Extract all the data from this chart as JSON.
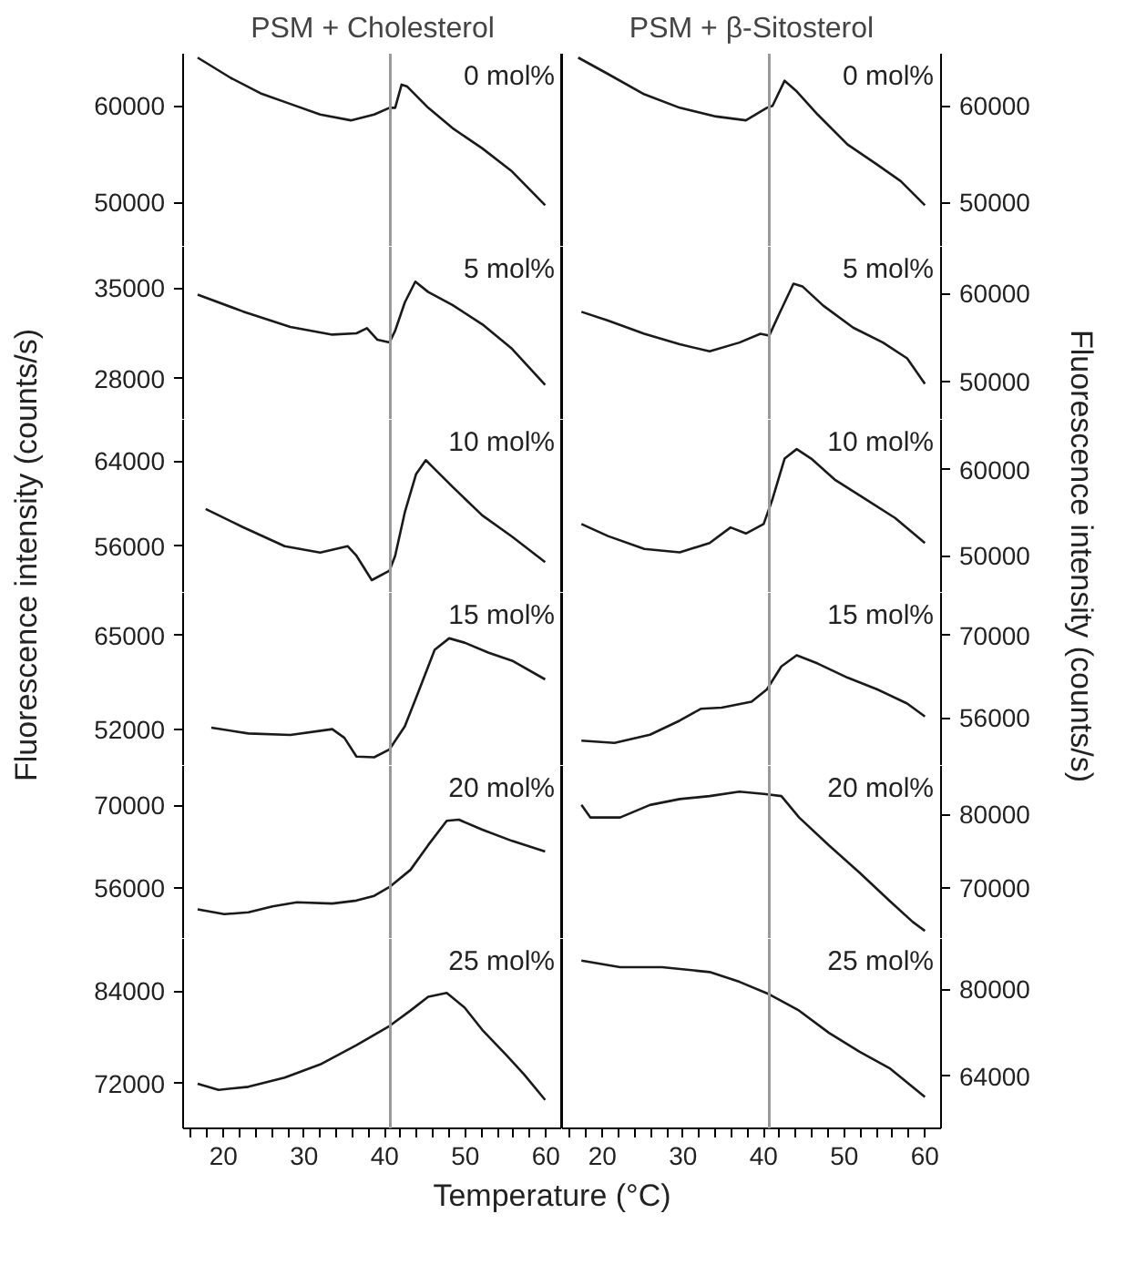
{
  "chart_data": [
    {
      "type": "line",
      "title": "PSM + Cholesterol",
      "annotations": [
        "0 mol%"
      ],
      "xlim": [
        15,
        62
      ],
      "ylim": [
        45400,
        65400
      ],
      "yticks": [
        50000,
        60000
      ],
      "tick_labels": "y",
      "ref_lines": [
        {
          "axis": "x",
          "value": 40.7,
          "color": "#999999"
        }
      ],
      "series": [
        {
          "color": "#1a1a1a",
          "x": [
            16.8,
            20.9,
            24.6,
            28.3,
            32.0,
            35.8,
            38.7,
            40.6,
            41.3,
            42.1,
            42.8,
            45.4,
            48.4,
            52.1,
            55.8,
            59.9
          ],
          "values": [
            65000,
            62900,
            61300,
            60200,
            59100,
            58500,
            59100,
            59800,
            59800,
            62200,
            62000,
            59800,
            57700,
            55600,
            53200,
            49700
          ]
        }
      ]
    },
    {
      "type": "line",
      "title": "PSM + β-Sitosterol",
      "annotations": [
        "0 mol%"
      ],
      "xlim": [
        15,
        62
      ],
      "ylim": [
        45400,
        65400
      ],
      "yticks": [
        50000,
        60000
      ],
      "tick_labels": "y",
      "ref_lines": [
        {
          "axis": "x",
          "value": 40.7,
          "color": "#999999"
        }
      ],
      "series": [
        {
          "color": "#1a1a1a",
          "x": [
            17.0,
            20.7,
            25.2,
            29.6,
            34.1,
            37.8,
            40.4,
            41.1,
            42.6,
            44.1,
            46.7,
            50.4,
            54.1,
            57.0,
            60.0
          ],
          "values": [
            65000,
            63300,
            61200,
            59800,
            58900,
            58500,
            59800,
            60000,
            62600,
            61500,
            59100,
            56000,
            53900,
            52200,
            49700
          ]
        }
      ]
    },
    {
      "type": "line",
      "annotations": [
        "5 mol%"
      ],
      "xlim": [
        15,
        62
      ],
      "ylim": [
        24800,
        38200
      ],
      "yticks": [
        28000,
        35000
      ],
      "tick_labels": "y",
      "ref_lines": [
        {
          "axis": "x",
          "value": 40.7,
          "color": "#999999"
        }
      ],
      "series": [
        {
          "color": "#1a1a1a",
          "x": [
            16.8,
            22.4,
            28.3,
            33.5,
            36.5,
            37.8,
            39.1,
            40.6,
            41.3,
            42.5,
            43.8,
            45.4,
            48.4,
            52.1,
            55.8,
            59.9
          ],
          "values": [
            34500,
            33200,
            32000,
            31400,
            31500,
            31900,
            31000,
            30800,
            31700,
            33900,
            35500,
            34700,
            33700,
            32200,
            30300,
            27500
          ]
        }
      ]
    },
    {
      "type": "line",
      "annotations": [
        "5 mol%"
      ],
      "xlim": [
        15,
        62
      ],
      "ylim": [
        45600,
        65300
      ],
      "yticks": [
        50000,
        60000
      ],
      "tick_labels": "y",
      "ref_lines": [
        {
          "axis": "x",
          "value": 40.7,
          "color": "#999999"
        }
      ],
      "series": [
        {
          "color": "#1a1a1a",
          "x": [
            17.4,
            20.7,
            25.2,
            29.6,
            33.3,
            37.0,
            39.6,
            40.7,
            41.9,
            43.7,
            44.8,
            47.4,
            51.1,
            54.8,
            57.8,
            60.0
          ],
          "values": [
            57900,
            56900,
            55400,
            54200,
            53400,
            54400,
            55400,
            55200,
            57600,
            61100,
            60800,
            58600,
            56100,
            54400,
            52600,
            49700
          ]
        }
      ]
    },
    {
      "type": "line",
      "annotations": [
        "10 mol%"
      ],
      "ylabel": "Fluorescence intensity (counts/s)",
      "xlim": [
        15,
        62
      ],
      "ylim": [
        51600,
        67900
      ],
      "yticks": [
        56000,
        64000
      ],
      "tick_labels": "y",
      "ref_lines": [
        {
          "axis": "x",
          "value": 40.7,
          "color": "#999999"
        }
      ],
      "series": [
        {
          "color": "#1a1a1a",
          "x": [
            17.8,
            22.4,
            27.6,
            32.0,
            35.4,
            36.5,
            38.4,
            40.6,
            41.3,
            42.5,
            43.9,
            45.1,
            48.4,
            52.1,
            55.8,
            59.9
          ],
          "values": [
            59500,
            57800,
            56000,
            55400,
            56000,
            55100,
            52800,
            53700,
            55100,
            59200,
            62800,
            64100,
            61600,
            58900,
            56900,
            54500
          ]
        }
      ]
    },
    {
      "type": "line",
      "annotations": [
        "10 mol%"
      ],
      "ylabel": "Fluorescence intensity (counts/s)",
      "xlim": [
        15,
        62
      ],
      "ylim": [
        45700,
        65800
      ],
      "yticks": [
        50000,
        60000
      ],
      "tick_labels": "y",
      "ref_lines": [
        {
          "axis": "x",
          "value": 40.7,
          "color": "#999999"
        }
      ],
      "series": [
        {
          "color": "#1a1a1a",
          "x": [
            17.4,
            20.7,
            25.2,
            29.6,
            33.3,
            35.9,
            37.8,
            40.0,
            41.1,
            42.6,
            44.1,
            45.9,
            48.9,
            52.6,
            56.3,
            60.0
          ],
          "values": [
            53700,
            52300,
            50800,
            50400,
            51500,
            53300,
            52600,
            53700,
            56600,
            61300,
            62400,
            61300,
            58800,
            56600,
            54400,
            51500
          ]
        }
      ]
    },
    {
      "type": "line",
      "annotations": [
        "15 mol%"
      ],
      "xlim": [
        15,
        62
      ],
      "ylim": [
        46900,
        70900
      ],
      "yticks": [
        52000,
        65000
      ],
      "tick_labels": "y",
      "ref_lines": [
        {
          "axis": "x",
          "value": 40.7,
          "color": "#999999"
        }
      ],
      "series": [
        {
          "color": "#1a1a1a",
          "x": [
            18.5,
            23.1,
            28.3,
            33.5,
            35.0,
            36.5,
            38.7,
            40.6,
            42.5,
            44.3,
            46.2,
            48.0,
            49.9,
            52.9,
            55.8,
            59.9
          ],
          "values": [
            52200,
            51400,
            51200,
            52000,
            50800,
            48200,
            48100,
            49200,
            52400,
            57500,
            63000,
            64600,
            64000,
            62600,
            61500,
            58900
          ]
        }
      ]
    },
    {
      "type": "line",
      "annotations": [
        "15 mol%"
      ],
      "xlim": [
        15,
        62
      ],
      "ylim": [
        47800,
        77200
      ],
      "yticks": [
        56000,
        70000
      ],
      "tick_labels": "y",
      "ref_lines": [
        {
          "axis": "x",
          "value": 40.7,
          "color": "#999999"
        }
      ],
      "series": [
        {
          "color": "#1a1a1a",
          "x": [
            17.4,
            21.5,
            25.9,
            29.6,
            32.2,
            34.8,
            38.5,
            40.4,
            42.2,
            44.1,
            46.7,
            50.4,
            54.1,
            57.8,
            60.0
          ],
          "values": [
            52100,
            51700,
            53100,
            55500,
            57500,
            57700,
            58700,
            60800,
            64700,
            66600,
            65200,
            62800,
            60800,
            58400,
            56200
          ]
        }
      ]
    },
    {
      "type": "line",
      "annotations": [
        "20 mol%"
      ],
      "xlim": [
        15,
        62
      ],
      "ylim": [
        47400,
        76700
      ],
      "yticks": [
        56000,
        70000
      ],
      "tick_labels": "y",
      "ref_lines": [
        {
          "axis": "x",
          "value": 40.7,
          "color": "#999999"
        }
      ],
      "series": [
        {
          "color": "#1a1a1a",
          "x": [
            16.8,
            20.1,
            23.1,
            26.1,
            29.1,
            33.5,
            36.5,
            38.7,
            40.6,
            43.2,
            45.4,
            47.7,
            49.2,
            52.1,
            55.8,
            59.9
          ],
          "values": [
            52400,
            51600,
            51900,
            52900,
            53600,
            53400,
            53900,
            54700,
            56200,
            59100,
            63300,
            67400,
            67600,
            65900,
            64000,
            62200
          ]
        }
      ]
    },
    {
      "type": "line",
      "annotations": [
        "20 mol%"
      ],
      "xlim": [
        15,
        62
      ],
      "ylim": [
        63100,
        86600
      ],
      "yticks": [
        70000,
        80000
      ],
      "tick_labels": "y",
      "ref_lines": [
        {
          "axis": "x",
          "value": 40.7,
          "color": "#999999"
        }
      ],
      "series": [
        {
          "color": "#1a1a1a",
          "x": [
            17.4,
            18.5,
            22.2,
            25.9,
            29.6,
            33.3,
            37.0,
            40.0,
            42.2,
            44.4,
            48.1,
            51.9,
            55.6,
            58.5,
            60.0
          ],
          "values": [
            81300,
            79600,
            79600,
            81300,
            82100,
            82500,
            83100,
            82800,
            82500,
            79600,
            75800,
            72100,
            68300,
            65400,
            64200
          ]
        }
      ]
    },
    {
      "type": "line",
      "annotations": [
        "25 mol%"
      ],
      "xlabel": "Temperature (°C)",
      "xlim": [
        15,
        62
      ],
      "xticks": [
        {
          "value": 16,
          "label": null
        },
        {
          "value": 18,
          "label": null
        },
        20,
        {
          "value": 22,
          "label": null
        },
        {
          "value": 24,
          "label": null
        },
        {
          "value": 26,
          "label": null
        },
        {
          "value": 28,
          "label": null
        },
        30,
        {
          "value": 32,
          "label": null
        },
        {
          "value": 34,
          "label": null
        },
        {
          "value": 36,
          "label": null
        },
        {
          "value": 38,
          "label": null
        },
        40,
        {
          "value": 42,
          "label": null
        },
        {
          "value": 44,
          "label": null
        },
        {
          "value": 46,
          "label": null
        },
        {
          "value": 48,
          "label": null
        },
        50,
        {
          "value": 52,
          "label": null
        },
        {
          "value": 54,
          "label": null
        },
        {
          "value": 56,
          "label": null
        },
        {
          "value": 58,
          "label": null
        },
        60
      ],
      "ylim": [
        66200,
        90800
      ],
      "yticks": [
        72000,
        84000
      ],
      "ref_lines": [
        {
          "axis": "x",
          "value": 40.7,
          "color": "#999999"
        }
      ],
      "series": [
        {
          "color": "#1a1a1a",
          "x": [
            16.8,
            19.4,
            23.1,
            27.6,
            32.0,
            36.5,
            40.6,
            43.2,
            45.4,
            47.7,
            49.9,
            52.1,
            55.1,
            57.3,
            59.9
          ],
          "values": [
            72000,
            71200,
            71600,
            72800,
            74500,
            77000,
            79500,
            81500,
            83300,
            83800,
            81900,
            79000,
            75700,
            73200,
            69900
          ]
        }
      ]
    },
    {
      "type": "line",
      "annotations": [
        "25 mol%"
      ],
      "xlim": [
        15,
        62
      ],
      "xticks": [
        {
          "value": 16,
          "label": null
        },
        {
          "value": 18,
          "label": null
        },
        20,
        {
          "value": 22,
          "label": null
        },
        {
          "value": 24,
          "label": null
        },
        {
          "value": 26,
          "label": null
        },
        {
          "value": 28,
          "label": null
        },
        30,
        {
          "value": 32,
          "label": null
        },
        {
          "value": 34,
          "label": null
        },
        {
          "value": 36,
          "label": null
        },
        {
          "value": 38,
          "label": null
        },
        40,
        {
          "value": 42,
          "label": null
        },
        {
          "value": 44,
          "label": null
        },
        {
          "value": 46,
          "label": null
        },
        {
          "value": 48,
          "label": null
        },
        50,
        {
          "value": 52,
          "label": null
        },
        {
          "value": 54,
          "label": null
        },
        {
          "value": 56,
          "label": null
        },
        {
          "value": 58,
          "label": null
        },
        60
      ],
      "ylim": [
        54400,
        89300
      ],
      "yticks": [
        64000,
        80000
      ],
      "ref_lines": [
        {
          "axis": "x",
          "value": 40.7,
          "color": "#999999"
        }
      ],
      "series": [
        {
          "color": "#1a1a1a",
          "x": [
            17.4,
            22.2,
            27.4,
            33.3,
            37.0,
            40.7,
            44.4,
            48.1,
            51.9,
            55.6,
            60.0
          ],
          "values": [
            85300,
            84100,
            84100,
            83200,
            81400,
            79100,
            76100,
            72000,
            68500,
            65500,
            60200
          ]
        }
      ]
    }
  ]
}
